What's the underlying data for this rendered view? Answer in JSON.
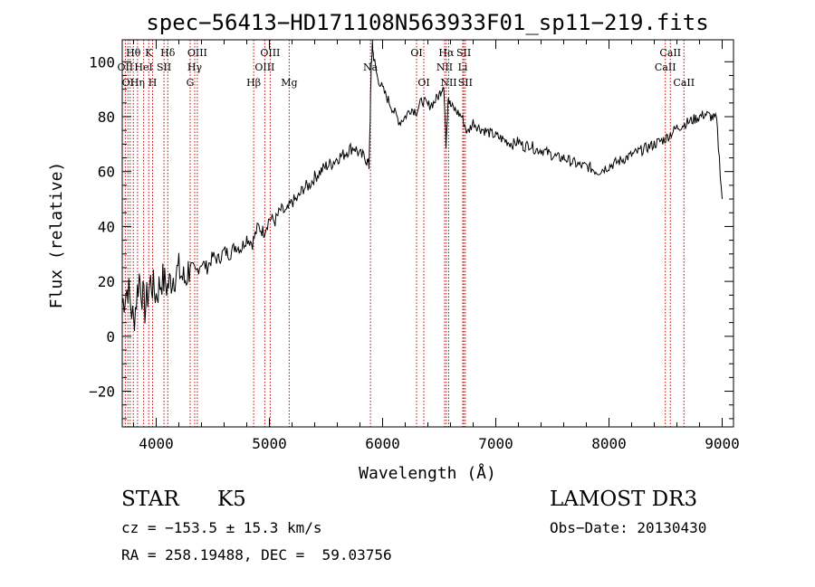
{
  "chart_data": {
    "type": "line",
    "title": "spec−56413−HD171108N563933F01_sp11−219.fits",
    "xlabel": "Wavelength (Å)",
    "ylabel": "Flux (relative)",
    "xlim": [
      3700,
      9100
    ],
    "ylim": [
      -33,
      108
    ],
    "xticks": [
      4000,
      5000,
      6000,
      7000,
      8000,
      9000
    ],
    "xtick_labels": [
      "4000",
      "5000",
      "6000",
      "7000",
      "8000",
      "9000"
    ],
    "yticks": [
      -20,
      0,
      20,
      40,
      60,
      80,
      100
    ],
    "ytick_labels": [
      "−20",
      "0",
      "20",
      "40",
      "60",
      "80",
      "100"
    ],
    "series": [
      {
        "name": "spectrum",
        "x": [
          3700,
          3750,
          3800,
          3850,
          3900,
          3950,
          4000,
          4050,
          4100,
          4150,
          4200,
          4250,
          4300,
          4350,
          4400,
          4450,
          4500,
          4550,
          4600,
          4650,
          4700,
          4750,
          4800,
          4850,
          4900,
          4950,
          5000,
          5050,
          5100,
          5150,
          5200,
          5250,
          5300,
          5350,
          5400,
          5450,
          5500,
          5550,
          5600,
          5650,
          5700,
          5750,
          5800,
          5850,
          5880,
          5900,
          5910,
          5920,
          5950,
          6000,
          6050,
          6100,
          6150,
          6200,
          6250,
          6300,
          6350,
          6400,
          6450,
          6500,
          6540,
          6560,
          6580,
          6600,
          6650,
          6700,
          6750,
          6800,
          6850,
          6900,
          6950,
          7000,
          7050,
          7100,
          7150,
          7200,
          7250,
          7300,
          7350,
          7400,
          7450,
          7500,
          7550,
          7600,
          7650,
          7700,
          7750,
          7800,
          7850,
          7900,
          7950,
          8000,
          8050,
          8100,
          8150,
          8200,
          8250,
          8300,
          8350,
          8400,
          8450,
          8500,
          8550,
          8600,
          8650,
          8700,
          8750,
          8800,
          8850,
          8900,
          8950,
          9000
        ],
        "y": [
          12,
          18,
          5,
          22,
          10,
          20,
          15,
          21,
          18,
          22,
          24,
          20,
          26,
          23,
          27,
          25,
          29,
          28,
          31,
          30,
          33,
          32,
          36,
          34,
          40,
          38,
          43,
          42,
          46,
          45,
          49,
          50,
          54,
          55,
          58,
          60,
          62,
          63,
          65,
          66,
          68,
          69,
          66,
          65,
          62,
          98,
          106,
          102,
          95,
          90,
          86,
          82,
          78,
          80,
          83,
          82,
          86,
          84,
          85,
          88,
          92,
          70,
          88,
          84,
          82,
          80,
          74,
          78,
          76,
          75,
          74,
          73,
          72,
          71,
          70,
          71,
          69,
          70,
          68,
          68,
          67,
          66,
          65,
          65,
          64,
          63,
          62,
          62,
          61,
          60,
          61,
          62,
          63,
          64,
          65,
          66,
          67,
          68,
          69,
          70,
          71,
          72,
          74,
          76,
          77,
          78,
          79,
          80,
          81,
          80,
          79,
          50
        ]
      }
    ],
    "line_labels": [
      {
        "text": "Hθ",
        "x": 3798,
        "row": 1
      },
      {
        "text": "K",
        "x": 3934,
        "row": 1
      },
      {
        "text": "Hδ",
        "x": 4102,
        "row": 1
      },
      {
        "text": "OIII",
        "x": 4363,
        "row": 1
      },
      {
        "text": "OIII",
        "x": 5007,
        "row": 1
      },
      {
        "text": "OI",
        "x": 6300,
        "row": 1
      },
      {
        "text": "Hα",
        "x": 6563,
        "row": 1
      },
      {
        "text": "SII",
        "x": 6717,
        "row": 1
      },
      {
        "text": "CaII",
        "x": 8542,
        "row": 1
      },
      {
        "text": "OII",
        "x": 3727,
        "row": 2
      },
      {
        "text": "HeI",
        "x": 3889,
        "row": 2
      },
      {
        "text": "SII",
        "x": 4069,
        "row": 2
      },
      {
        "text": "Hγ",
        "x": 4340,
        "row": 2
      },
      {
        "text": "OIII",
        "x": 4959,
        "row": 2
      },
      {
        "text": "Na",
        "x": 5893,
        "row": 2
      },
      {
        "text": "NII",
        "x": 6548,
        "row": 2
      },
      {
        "text": "Li",
        "x": 6708,
        "row": 2
      },
      {
        "text": "CaII",
        "x": 8498,
        "row": 2
      },
      {
        "text": "OI",
        "x": 3750,
        "row": 3
      },
      {
        "text": "Hη",
        "x": 3835,
        "row": 3
      },
      {
        "text": "H",
        "x": 3968,
        "row": 3
      },
      {
        "text": "G",
        "x": 4300,
        "row": 3
      },
      {
        "text": "Hβ",
        "x": 4861,
        "row": 3
      },
      {
        "text": "Mg",
        "x": 5175,
        "row": 3
      },
      {
        "text": "OI",
        "x": 6364,
        "row": 3
      },
      {
        "text": "NII",
        "x": 6584,
        "row": 3
      },
      {
        "text": "SII",
        "x": 6731,
        "row": 3
      },
      {
        "text": "CaII",
        "x": 8662,
        "row": 3
      }
    ],
    "marker_lines_x": [
      3727,
      3750,
      3770,
      3798,
      3835,
      3889,
      3934,
      3968,
      4069,
      4102,
      4300,
      4340,
      4363,
      4861,
      4959,
      5007,
      5175,
      5893,
      6300,
      6364,
      6548,
      6563,
      6584,
      6708,
      6717,
      6731,
      8498,
      8542,
      8662
    ],
    "marker_color": "#cc0000",
    "line_color": "#000000"
  },
  "footer": {
    "object_class": "STAR",
    "subclass": "K5",
    "survey": "LAMOST DR3",
    "velocity": "cz = −153.5 ± 15.3 km/s",
    "obs_date": "Obs−Date: 20130430",
    "coords": "RA = 258.19488, DEC =  59.03756"
  }
}
